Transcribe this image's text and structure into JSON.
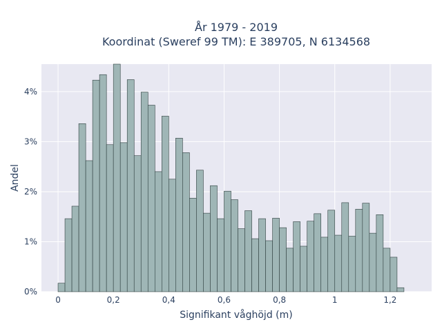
{
  "chart_data": {
    "type": "bar",
    "title_line1": "År 1979 - 2019",
    "title_line2": "Koordinat (Sweref 99 TM): E 389705, N 6134568",
    "xlabel": "Signifikant våghöjd (m)",
    "ylabel": "Andel",
    "bin_width": 0.025,
    "bin_start": 0.0,
    "xlim": [
      -0.06,
      1.35
    ],
    "ylim": [
      0,
      0.0455
    ],
    "x_ticks": [
      0,
      0.2,
      0.4,
      0.6,
      0.8,
      1.0,
      1.2
    ],
    "x_tick_labels": [
      "0",
      "0,2",
      "0,4",
      "0,6",
      "0,8",
      "1",
      "1,2"
    ],
    "y_ticks": [
      0,
      0.01,
      0.02,
      0.03,
      0.04
    ],
    "y_tick_labels": [
      "0%",
      "1%",
      "2%",
      "3%",
      "4%"
    ],
    "grid": true,
    "plot_background": "#e8e8f2",
    "bar_color": "#9fb6b6",
    "bar_edge_color": "#2f3f3f",
    "values": [
      0.0017,
      0.0146,
      0.0171,
      0.0336,
      0.0262,
      0.0423,
      0.0434,
      0.0294,
      0.0455,
      0.0298,
      0.0424,
      0.0272,
      0.0399,
      0.0373,
      0.024,
      0.0351,
      0.0225,
      0.0307,
      0.0278,
      0.0187,
      0.0243,
      0.0157,
      0.0212,
      0.0146,
      0.0201,
      0.0184,
      0.0126,
      0.0162,
      0.0106,
      0.0146,
      0.0102,
      0.0147,
      0.0128,
      0.0087,
      0.014,
      0.0091,
      0.0141,
      0.0156,
      0.0109,
      0.0163,
      0.0113,
      0.0178,
      0.0111,
      0.0165,
      0.0177,
      0.0117,
      0.0154,
      0.0087,
      0.0069,
      0.0008
    ]
  }
}
